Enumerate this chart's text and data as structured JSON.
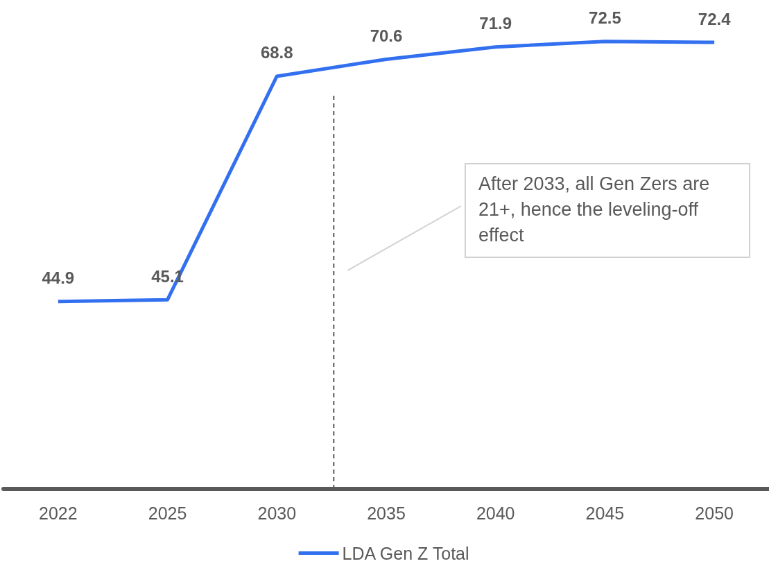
{
  "chart_data": {
    "type": "line",
    "categories": [
      "2022",
      "2025",
      "2030",
      "2035",
      "2040",
      "2045",
      "2050"
    ],
    "series": [
      {
        "name": "LDA Gen Z Total",
        "color": "#3370f0",
        "values": [
          44.9,
          45.1,
          68.8,
          70.6,
          71.9,
          72.5,
          72.4
        ]
      }
    ],
    "tick_labels": "x",
    "data_labels": true,
    "marker": "none",
    "line_style": "solid",
    "grid": false,
    "legend": "bottom",
    "annotations": [
      "After 2033, all Gen Zers are 21+, hence the leveling-off effect"
    ]
  }
}
